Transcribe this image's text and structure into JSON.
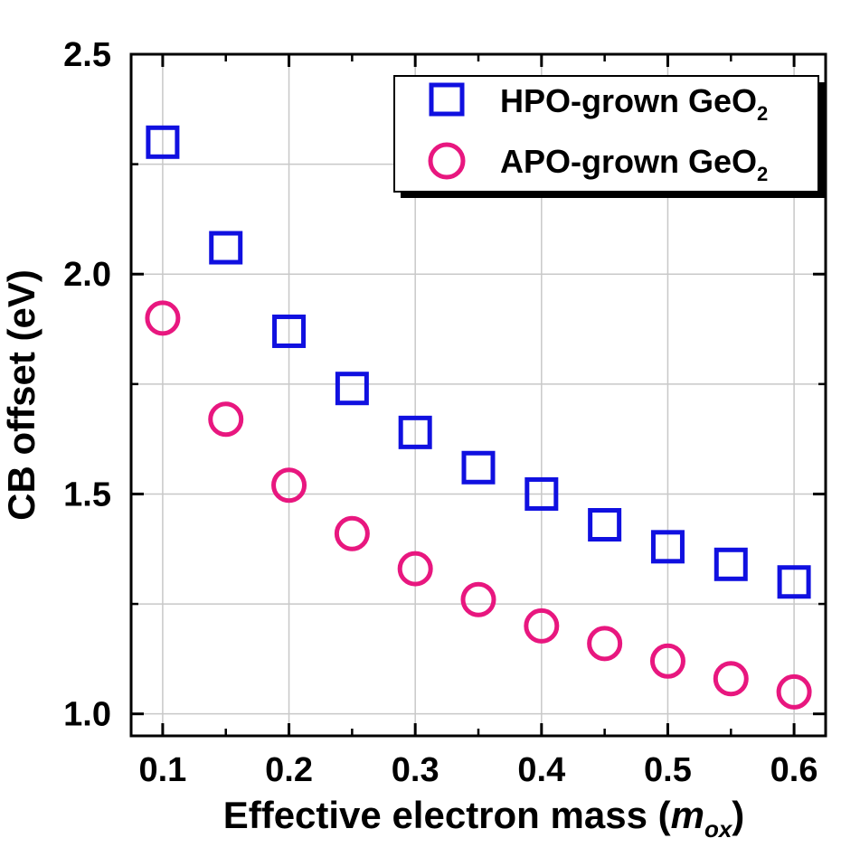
{
  "chart_data": {
    "type": "scatter",
    "xlabel": "Effective electron mass (",
    "xlabel_var": "m",
    "xlabel_sub": "ox",
    "xlabel_close": ")",
    "ylabel": "CB offset (eV)",
    "xlim": [
      0.075,
      0.625
    ],
    "ylim": [
      0.95,
      2.5
    ],
    "x_ticks": [
      "0.1",
      "0.2",
      "0.3",
      "0.4",
      "0.5",
      "0.6"
    ],
    "y_ticks": [
      "1.0",
      "1.5",
      "2.0",
      "2.5"
    ],
    "grid": true,
    "legend_position": "top-right",
    "x": [
      0.1,
      0.15,
      0.2,
      0.25,
      0.3,
      0.35,
      0.4,
      0.45,
      0.5,
      0.55,
      0.6
    ],
    "series": [
      {
        "name": "HPO-grown GeO",
        "name_sub": "2",
        "marker": "square",
        "color": "#1010e0",
        "values": [
          2.3,
          2.06,
          1.87,
          1.74,
          1.64,
          1.56,
          1.5,
          1.43,
          1.38,
          1.34,
          1.3
        ]
      },
      {
        "name": "APO-grown GeO",
        "name_sub": "2",
        "marker": "circle",
        "color": "#e8177f",
        "values": [
          1.9,
          1.67,
          1.52,
          1.41,
          1.33,
          1.26,
          1.2,
          1.16,
          1.12,
          1.08,
          1.05
        ]
      }
    ]
  }
}
